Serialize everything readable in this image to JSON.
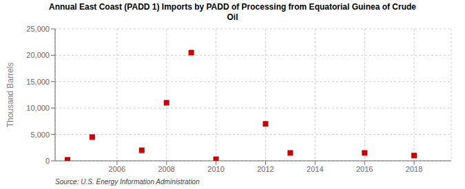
{
  "chart_data": {
    "type": "scatter",
    "title": "Annual East Coast (PADD 1) Imports by PADD of Processing from Equatorial Guinea of Crude\nOil",
    "ylabel": "Thousand Barrels",
    "annotations": [
      "Source: U.S. Energy Information Administration"
    ],
    "x": [
      2004,
      2005,
      2007,
      2008,
      2009,
      2010,
      2012,
      2013,
      2016,
      2018
    ],
    "values": [
      200,
      4500,
      2000,
      11000,
      20500,
      300,
      7000,
      1500,
      1500,
      1000
    ],
    "color": "#cc0000",
    "marker": "square",
    "xlim": [
      2003.5,
      2019.5
    ],
    "ylim": [
      0,
      25000
    ],
    "xticks": [
      2006,
      2008,
      2010,
      2012,
      2014,
      2016,
      2018
    ],
    "yticks": [
      0,
      {
        "value": 5000,
        "label": "5,000"
      },
      {
        "value": 10000,
        "label": "10,000"
      },
      {
        "value": 15000,
        "label": "15,000"
      },
      {
        "value": 20000,
        "label": "20,000"
      },
      {
        "value": 25000,
        "label": "25,000"
      }
    ],
    "grid": true
  }
}
